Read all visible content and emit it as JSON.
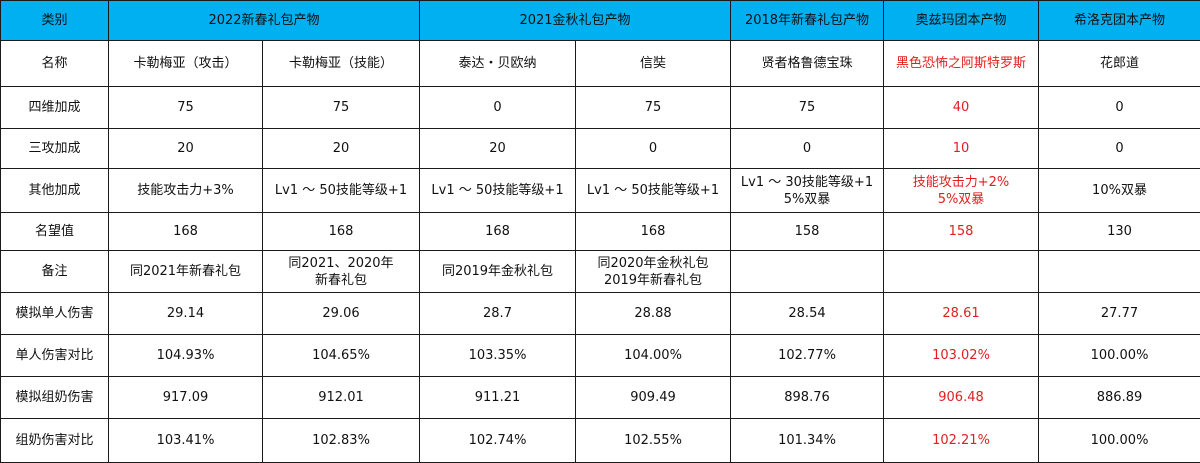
{
  "header": {
    "corner": "类别",
    "groups": [
      "2022新春礼包产物",
      "2021金秋礼包产物",
      "2018年新春礼包产物",
      "奥兹玛团本产物",
      "希洛克团本产物"
    ]
  },
  "rows": {
    "name": {
      "label": "名称",
      "cells": [
        "卡勒梅亚（攻击）",
        "卡勒梅亚（技能）",
        "泰达・贝欧纳",
        "信奘",
        "贤者格鲁德宝珠",
        "黑色恐怖之阿斯特罗斯",
        "花郎道"
      ]
    },
    "four_stat": {
      "label": "四维加成",
      "cells": [
        "75",
        "75",
        "0",
        "75",
        "75",
        "40",
        "0"
      ]
    },
    "three_atk": {
      "label": "三攻加成",
      "cells": [
        "20",
        "20",
        "20",
        "0",
        "0",
        "10",
        "0"
      ]
    },
    "other": {
      "label": "其他加成",
      "cells": [
        [
          "技能攻击力+3%"
        ],
        [
          "Lv1 ～ 50技能等级+1"
        ],
        [
          "Lv1 ～ 50技能等级+1"
        ],
        [
          "Lv1 ～ 50技能等级+1"
        ],
        [
          "Lv1 ～ 30技能等级+1",
          "5%双暴"
        ],
        [
          "技能攻击力+2%",
          "5%双暴"
        ],
        [
          "10%双暴"
        ]
      ]
    },
    "fame": {
      "label": "名望值",
      "cells": [
        "168",
        "168",
        "168",
        "168",
        "158",
        "158",
        "130"
      ]
    },
    "note": {
      "label": "备注",
      "cells": [
        [
          "同2021年新春礼包"
        ],
        [
          "同2021、2020年",
          "新春礼包"
        ],
        [
          "同2019年金秋礼包"
        ],
        [
          "同2020年金秋礼包",
          "2019年新春礼包"
        ],
        [
          ""
        ],
        [
          ""
        ],
        [
          ""
        ]
      ]
    },
    "sim_single": {
      "label": "模拟单人伤害",
      "cells": [
        "29.14",
        "29.06",
        "28.7",
        "28.88",
        "28.54",
        "28.61",
        "27.77"
      ]
    },
    "single_ratio": {
      "label": "单人伤害对比",
      "cells": [
        "104.93%",
        "104.65%",
        "103.35%",
        "104.00%",
        "102.77%",
        "103.02%",
        "100.00%"
      ]
    },
    "sim_buff": {
      "label": "模拟组奶伤害",
      "cells": [
        "917.09",
        "912.01",
        "911.21",
        "909.49",
        "898.76",
        "906.48",
        "886.89"
      ]
    },
    "buff_ratio": {
      "label": "组奶伤害对比",
      "cells": [
        "103.41%",
        "102.83%",
        "102.74%",
        "102.55%",
        "101.34%",
        "102.21%",
        "100.00%"
      ]
    }
  },
  "highlight_color": "#e02020",
  "header_color": "#00b0f0"
}
